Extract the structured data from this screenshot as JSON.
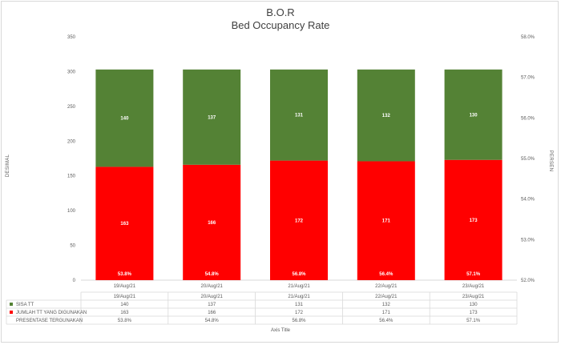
{
  "chart_data": {
    "type": "bar",
    "stacked": true,
    "title": "B.O.R",
    "subtitle": "Bed Occupancy Rate",
    "ylabel_left": "DESIMAL",
    "ylabel_right": "PERSEN",
    "xlabel": "Axis Title",
    "categories": [
      "19/Aug/21",
      "20/Aug/21",
      "21/Aug/21",
      "22/Aug/21",
      "23/Aug/21"
    ],
    "ylim_left": [
      0,
      350
    ],
    "yticks_left": [
      "0",
      "50",
      "100",
      "150",
      "200",
      "250",
      "300",
      "350"
    ],
    "ylim_right": [
      52.0,
      58.0
    ],
    "yticks_right": [
      "52.0%",
      "53.0%",
      "54.0%",
      "55.0%",
      "56.0%",
      "57.0%",
      "58.0%"
    ],
    "grid": false,
    "series": [
      {
        "name": "JUMLAH TT YANG DIGUNAKAN",
        "color": "#ff0000",
        "values": [
          163,
          166,
          172,
          171,
          173
        ],
        "labels": [
          "163",
          "166",
          "172",
          "171",
          "173"
        ]
      },
      {
        "name": "SISA TT",
        "color": "#548235",
        "values": [
          140,
          137,
          131,
          132,
          130
        ],
        "labels": [
          "140",
          "137",
          "131",
          "132",
          "130"
        ]
      },
      {
        "name": "PRESENTASE TERGUNAKAN",
        "values": [
          53.8,
          54.8,
          56.8,
          56.4,
          57.1
        ],
        "labels": [
          "53.8%",
          "54.8%",
          "56.8%",
          "56.4%",
          "57.1%"
        ]
      }
    ],
    "table": {
      "rows": [
        {
          "key": "SISA TT",
          "marker": "#548235",
          "cells": [
            "140",
            "137",
            "131",
            "132",
            "130"
          ]
        },
        {
          "key": "JUMLAH TT YANG DIGUNAKAN",
          "marker": "#ff0000",
          "cells": [
            "163",
            "166",
            "172",
            "171",
            "173"
          ]
        },
        {
          "key": "PRESENTASE TERGUNAKAN",
          "marker": "",
          "cells": [
            "53.8%",
            "54.8%",
            "56.8%",
            "56.4%",
            "57.1%"
          ]
        }
      ]
    }
  }
}
